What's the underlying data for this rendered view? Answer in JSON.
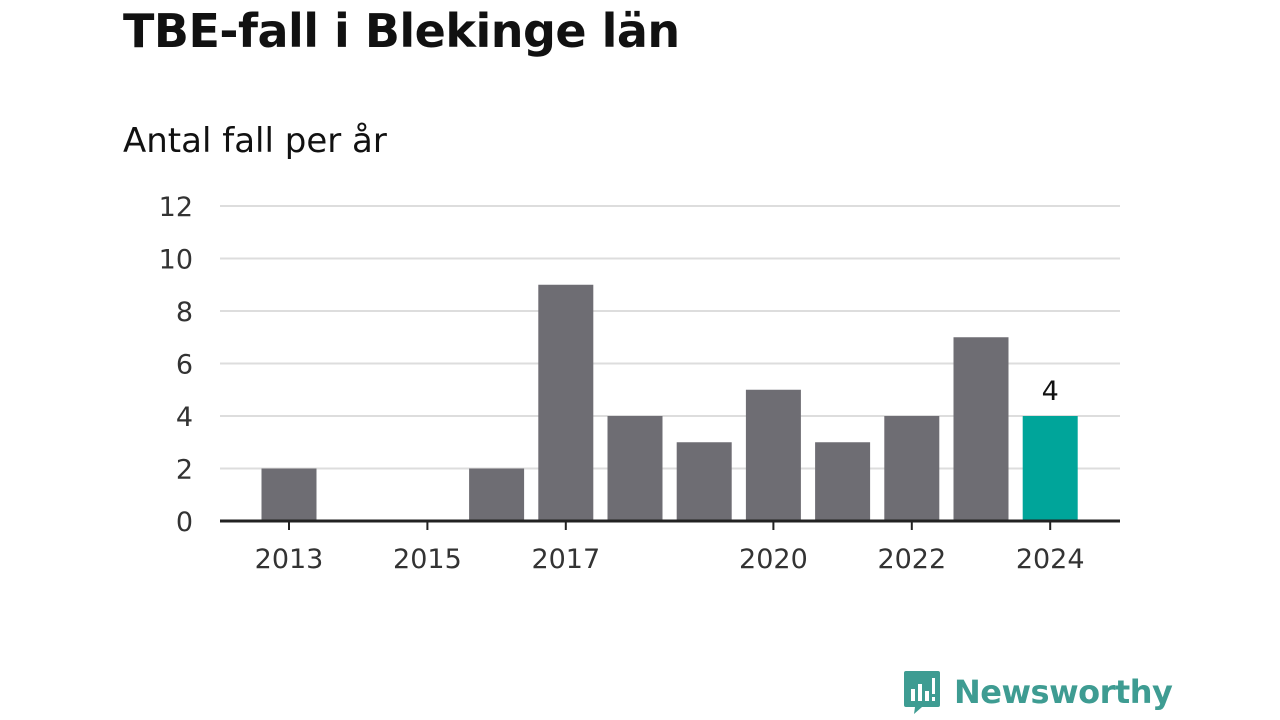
{
  "title": "TBE-fall i Blekinge län",
  "subtitle": "Antal fall per år",
  "brand": {
    "name": "Newsworthy",
    "color": "#3e9c92",
    "icon": "newsworthy-logo-icon"
  },
  "colors": {
    "bar": "#6e6d73",
    "highlight": "#00a59a",
    "grid": "#dddddd",
    "axis": "#222222",
    "text": "#333333"
  },
  "chart_data": {
    "type": "bar",
    "categories": [
      "2013",
      "2014",
      "2015",
      "2016",
      "2017",
      "2018",
      "2019",
      "2020",
      "2021",
      "2022",
      "2023",
      "2024"
    ],
    "values": [
      2,
      0,
      0,
      2,
      9,
      4,
      3,
      5,
      3,
      4,
      7,
      4
    ],
    "tick_labels": [
      "2013",
      "2015",
      "2017",
      "2020",
      "2022",
      "2024"
    ],
    "yticks": [
      0,
      2,
      4,
      6,
      8,
      10,
      12
    ],
    "ylim": [
      0,
      12
    ],
    "highlight": "2024",
    "highlight_label": "4",
    "title": "TBE-fall i Blekinge län",
    "ylabel": "Antal fall per år",
    "xlabel": "",
    "grid": true,
    "legend": "none"
  }
}
